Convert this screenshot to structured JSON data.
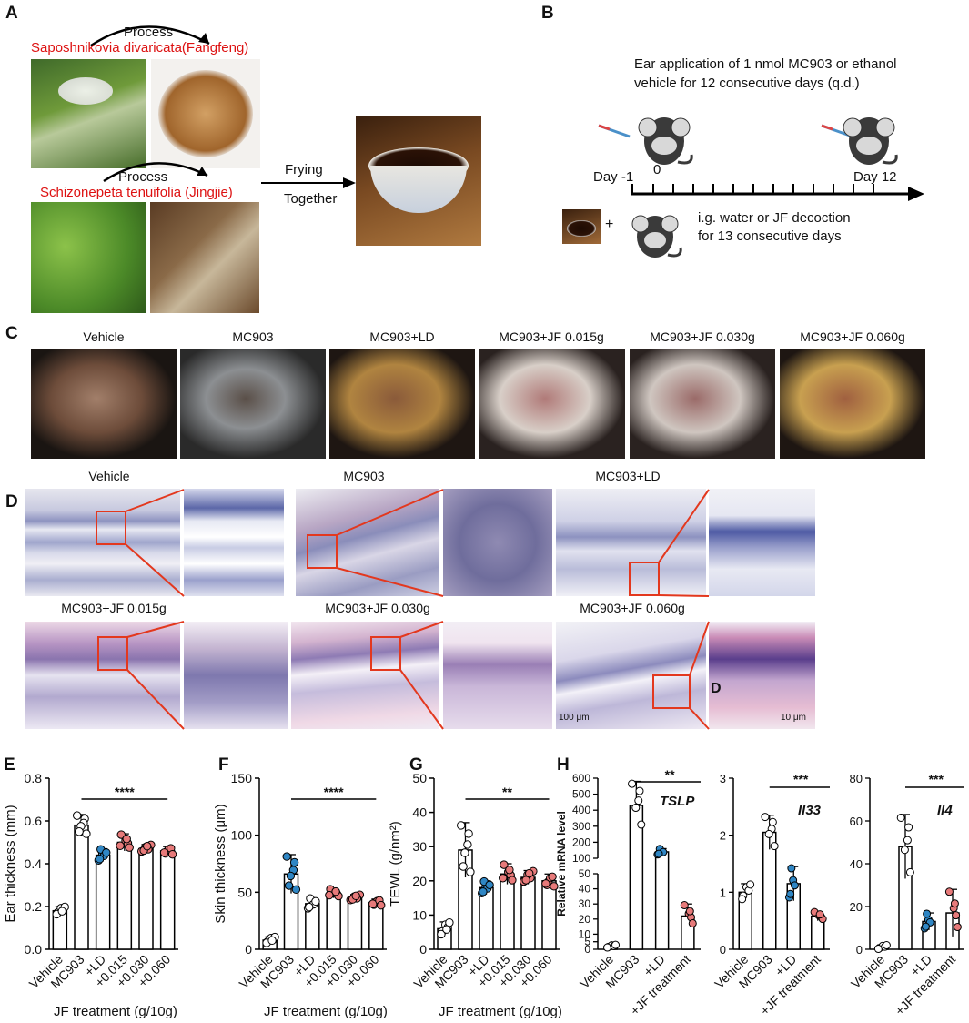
{
  "panelA": {
    "letter": "A",
    "process1": "Process",
    "plant1": "Saposhnikovia divaricata(Fangfeng)",
    "process2": "Process",
    "plant2": "Schizonepeta tenuifolia (Jingjie)",
    "frying": "Frying",
    "together": "Together"
  },
  "panelB": {
    "letter": "B",
    "line1": "Ear application of 1 nmol MC903 or ethanol",
    "line2": "vehicle for 12 consecutive days (q.d.)",
    "day_m1": "Day -1",
    "day0": "0",
    "day12": "Day 12",
    "plus": "+",
    "ig1": "i.g. water or JF decoction",
    "ig2": "for 13 consecutive days"
  },
  "panelC": {
    "letter": "C",
    "labels": [
      "Vehicle",
      "MC903",
      "MC903+LD",
      "MC903+JF 0.015g",
      "MC903+JF 0.030g",
      "MC903+JF 0.060g"
    ]
  },
  "panelD": {
    "letter": "D",
    "labels": [
      "Vehicle",
      "MC903",
      "MC903+LD",
      "MC903+JF 0.015g",
      "MC903+JF 0.030g",
      "MC903+JF 0.060g"
    ],
    "scale1": "100 μm",
    "scale2": "10 μm",
    "inset_letter": "D"
  },
  "panelsEtoG": {
    "xtick": [
      "Vehicle",
      "MC903",
      "+LD",
      "+0.015",
      "+0.030",
      "+0.060"
    ],
    "xgroup": "JF treatment (g/10g)"
  },
  "chart_data": [
    {
      "panel": "E",
      "type": "bar",
      "categories": [
        "Vehicle",
        "MC903",
        "+LD",
        "+0.015",
        "+0.030",
        "+0.060"
      ],
      "values": [
        0.18,
        0.58,
        0.44,
        0.5,
        0.47,
        0.46
      ],
      "errors": [
        0.02,
        0.05,
        0.03,
        0.04,
        0.02,
        0.02
      ],
      "colors": [
        "#ffffff",
        "#ffffff",
        "#2f86c4",
        "#e77a7a",
        "#e77a7a",
        "#e77a7a"
      ],
      "ylabel": "Ear thickness (mm)",
      "ylim": [
        0,
        0.8
      ],
      "yticks": [
        0.0,
        0.2,
        0.4,
        0.6,
        0.8
      ],
      "ytick_labels": [
        "0.0",
        "0.2",
        "0.4",
        "0.6",
        "0.8"
      ],
      "sig": "****"
    },
    {
      "panel": "F",
      "type": "bar",
      "categories": [
        "Vehicle",
        "MC903",
        "+LD",
        "+0.015",
        "+0.030",
        "+0.060"
      ],
      "values": [
        8,
        66,
        40,
        49,
        45,
        41
      ],
      "errors": [
        3,
        17,
        5,
        4,
        3,
        3
      ],
      "colors": [
        "#ffffff",
        "#2f86c4",
        "#ffffff",
        "#e77a7a",
        "#e77a7a",
        "#e77a7a"
      ],
      "ylabel": "Skin thickness (μm)",
      "ylim": [
        0,
        150
      ],
      "yticks": [
        0,
        50,
        100,
        150
      ],
      "ytick_labels": [
        "0",
        "50",
        "100",
        "150"
      ],
      "sig": "****"
    },
    {
      "panel": "G",
      "type": "bar",
      "categories": [
        "Vehicle",
        "MC903",
        "+LD",
        "+0.015",
        "+0.030",
        "+0.060"
      ],
      "values": [
        6,
        29,
        18,
        22,
        21,
        20
      ],
      "errors": [
        2,
        8,
        2,
        3,
        2,
        2
      ],
      "colors": [
        "#ffffff",
        "#ffffff",
        "#2f86c4",
        "#e77a7a",
        "#e77a7a",
        "#e77a7a"
      ],
      "ylabel": "TEWL (g/nm²)",
      "ylim": [
        0,
        50
      ],
      "yticks": [
        0,
        10,
        20,
        30,
        40,
        50
      ],
      "ytick_labels": [
        "0",
        "10",
        "20",
        "30",
        "40",
        "50"
      ],
      "sig": "**"
    },
    {
      "panel": "H",
      "type": "bar",
      "gene": "TSLP",
      "categories": [
        "Vehicle",
        "MC903",
        "+LD",
        "+JF treatment"
      ],
      "values": [
        2,
        430,
        140,
        22
      ],
      "errors": [
        1,
        150,
        20,
        8
      ],
      "colors": [
        "#ffffff",
        "#ffffff",
        "#2f86c4",
        "#e77a7a"
      ],
      "ylabel": "Relative mRNA level",
      "axis_break": true,
      "lower_yticks": [
        0,
        5,
        10,
        20,
        30,
        40,
        50
      ],
      "lower_ytick_labels": [
        "0",
        "5",
        "10",
        "20",
        "30",
        "40",
        "50"
      ],
      "upper_yticks": [
        100,
        200,
        300,
        400,
        500,
        600
      ],
      "upper_ytick_labels": [
        "100",
        "200",
        "300",
        "400",
        "500",
        "600"
      ],
      "sig": "**"
    },
    {
      "panel": "H",
      "type": "bar",
      "gene": "Il33",
      "categories": [
        "Vehicle",
        "MC903",
        "+LD",
        "+JF treatment"
      ],
      "values": [
        1.0,
        2.05,
        1.15,
        0.58
      ],
      "errors": [
        0.15,
        0.3,
        0.3,
        0.08
      ],
      "colors": [
        "#ffffff",
        "#ffffff",
        "#2f86c4",
        "#e77a7a"
      ],
      "ylim": [
        0,
        3
      ],
      "yticks": [
        0,
        1,
        2,
        3
      ],
      "ytick_labels": [
        "0",
        "1",
        "2",
        "3"
      ],
      "sig": "***"
    },
    {
      "panel": "H",
      "type": "bar",
      "gene": "Il4",
      "categories": [
        "Vehicle",
        "MC903",
        "+LD",
        "+JF treatment"
      ],
      "values": [
        1,
        48,
        13,
        17
      ],
      "errors": [
        1,
        15,
        4,
        11
      ],
      "colors": [
        "#ffffff",
        "#ffffff",
        "#2f86c4",
        "#e77a7a"
      ],
      "ylim": [
        0,
        80
      ],
      "yticks": [
        0,
        20,
        40,
        60,
        80
      ],
      "ytick_labels": [
        "0",
        "20",
        "40",
        "60",
        "80"
      ],
      "sig": "***"
    }
  ]
}
